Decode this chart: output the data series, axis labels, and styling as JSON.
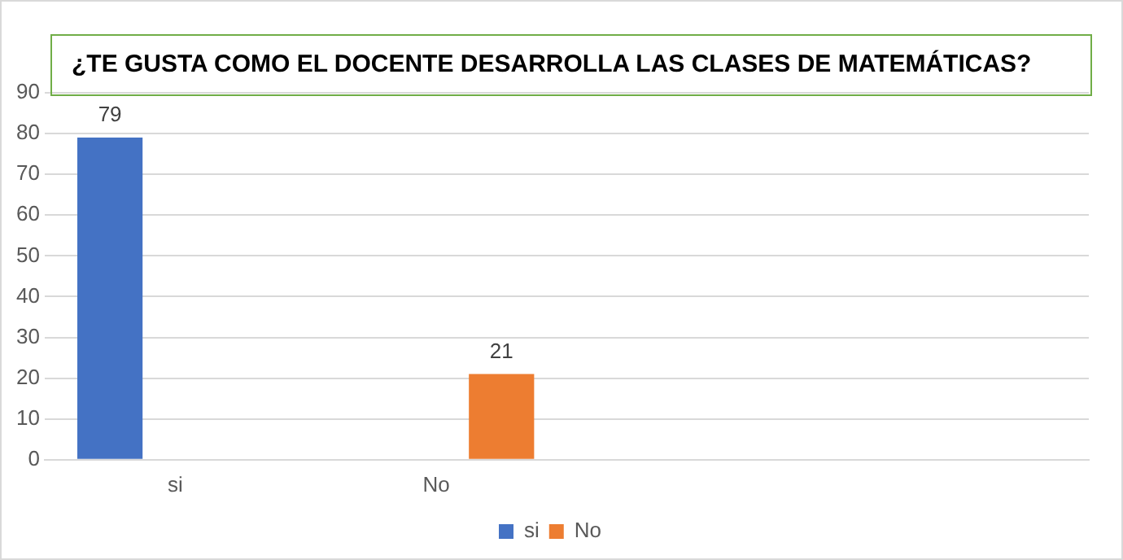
{
  "chart_data": {
    "type": "bar",
    "title": "¿TE GUSTA COMO EL DOCENTE DESARROLLA LAS CLASES DE MATEMÁTICAS?",
    "categories": [
      "si",
      "No",
      null,
      null
    ],
    "series": [
      {
        "name": "si",
        "color": "#4472c4",
        "values": [
          79,
          null,
          null,
          null
        ]
      },
      {
        "name": "No",
        "color": "#ed7d31",
        "values": [
          null,
          21,
          null,
          null
        ]
      }
    ],
    "ylim": [
      0,
      90
    ],
    "yticks": [
      0,
      10,
      20,
      30,
      40,
      50,
      60,
      70,
      80,
      90
    ],
    "grid": "y",
    "legend": "bottom",
    "data_labels": true
  }
}
